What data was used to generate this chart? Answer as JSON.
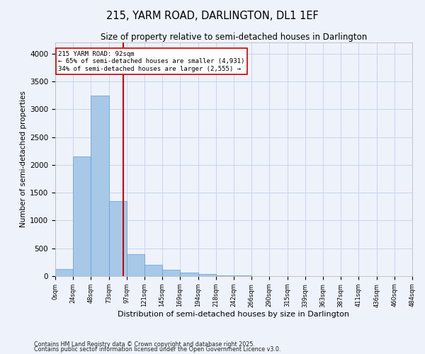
{
  "title": "215, YARM ROAD, DARLINGTON, DL1 1EF",
  "subtitle": "Size of property relative to semi-detached houses in Darlington",
  "xlabel": "Distribution of semi-detached houses by size in Darlington",
  "ylabel": "Number of semi-detached properties",
  "footnote1": "Contains HM Land Registry data © Crown copyright and database right 2025.",
  "footnote2": "Contains public sector information licensed under the Open Government Licence v3.0.",
  "bar_color": "#a8c8e8",
  "bar_edge_color": "#5a9fd4",
  "background_color": "#eef2fb",
  "grid_color": "#c8d4ee",
  "annotation_text": "215 YARM ROAD: 92sqm\n← 65% of semi-detached houses are smaller (4,931)\n34% of semi-detached houses are larger (2,555) →",
  "vline_x": 92,
  "vline_color": "#cc0000",
  "bin_edges": [
    0,
    24,
    48,
    73,
    97,
    121,
    145,
    169,
    194,
    218,
    242,
    266,
    290,
    315,
    339,
    363,
    387,
    411,
    436,
    460,
    484
  ],
  "bin_labels": [
    "0sqm",
    "24sqm",
    "48sqm",
    "73sqm",
    "97sqm",
    "121sqm",
    "145sqm",
    "169sqm",
    "194sqm",
    "218sqm",
    "242sqm",
    "266sqm",
    "290sqm",
    "315sqm",
    "339sqm",
    "363sqm",
    "387sqm",
    "411sqm",
    "436sqm",
    "460sqm",
    "484sqm"
  ],
  "bar_heights": [
    130,
    2150,
    3250,
    1350,
    400,
    200,
    120,
    60,
    40,
    15,
    8,
    3,
    2,
    1,
    1,
    0,
    0,
    0,
    0,
    0
  ],
  "ylim": [
    0,
    4200
  ],
  "yticks": [
    0,
    500,
    1000,
    1500,
    2000,
    2500,
    3000,
    3500,
    4000
  ]
}
